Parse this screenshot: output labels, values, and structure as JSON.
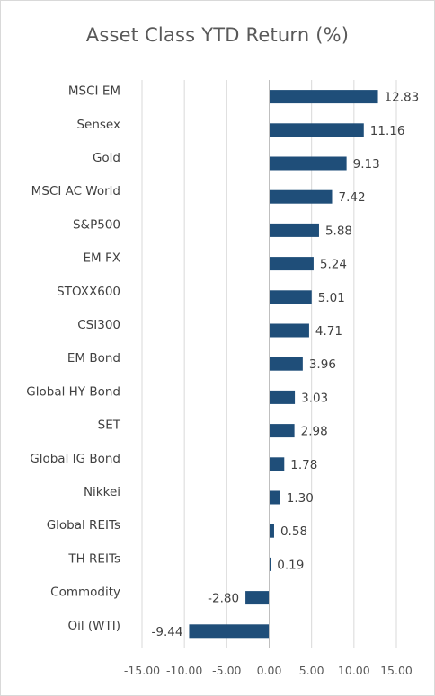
{
  "chart_data": {
    "type": "bar",
    "orientation": "horizontal",
    "title": "Asset Class YTD Return (%)",
    "xlabel": "",
    "ylabel": "",
    "categories": [
      "MSCI EM",
      "Sensex",
      "Gold",
      "MSCI AC World",
      "S&P500",
      "EM FX",
      "STOXX600",
      "CSI300",
      "EM Bond",
      "Global HY Bond",
      "SET",
      "Global IG Bond",
      "Nikkei",
      "Global REITs",
      "TH REITs",
      "Commodity",
      "Oil (WTI)"
    ],
    "values": [
      12.83,
      11.16,
      9.13,
      7.42,
      5.88,
      5.24,
      5.01,
      4.71,
      3.96,
      3.03,
      2.98,
      1.78,
      1.3,
      0.58,
      0.19,
      -2.8,
      -9.44
    ],
    "value_labels": [
      "12.83",
      "11.16",
      "9.13",
      "7.42",
      "5.88",
      "5.24",
      "5.01",
      "4.71",
      "3.96",
      "3.03",
      "2.98",
      "1.78",
      "1.30",
      "0.58",
      "0.19",
      "-2.80",
      "-9.44"
    ],
    "xlim": [
      -15,
      15
    ],
    "xticks": [
      -15,
      -10,
      -5,
      0,
      5,
      10,
      15
    ],
    "xtick_labels": [
      "-15.00",
      "-10.00",
      "-5.00",
      "0.00",
      "5.00",
      "10.00",
      "15.00"
    ],
    "grid": "vertical",
    "legend": "none",
    "bar_color": "#1f4e79"
  }
}
